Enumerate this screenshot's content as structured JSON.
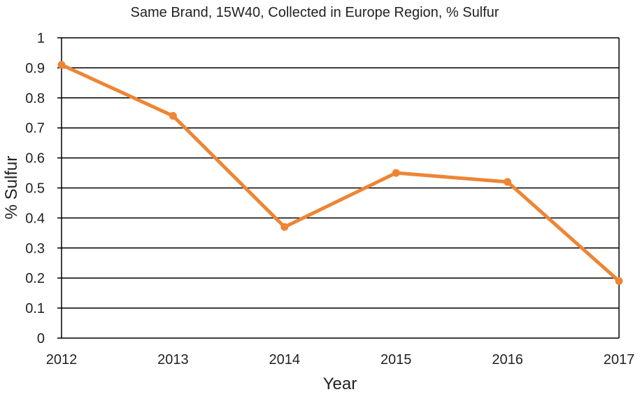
{
  "chart_data": {
    "type": "line",
    "title": "Same Brand, 15W40, Collected in Europe Region, % Sulfur",
    "xlabel": "Year",
    "ylabel": "% Sulfur",
    "categories": [
      "2012",
      "2013",
      "2014",
      "2015",
      "2016",
      "2017"
    ],
    "series": [
      {
        "values": [
          0.91,
          0.74,
          0.37,
          0.55,
          0.52,
          0.19
        ],
        "color": "#ed8535"
      }
    ],
    "ylim": [
      0,
      1
    ],
    "yticks": [
      "0",
      "0.1",
      "0.2",
      "0.3",
      "0.4",
      "0.5",
      "0.6",
      "0.7",
      "0.8",
      "0.9",
      "1"
    ],
    "grid": true,
    "legend": "none"
  }
}
